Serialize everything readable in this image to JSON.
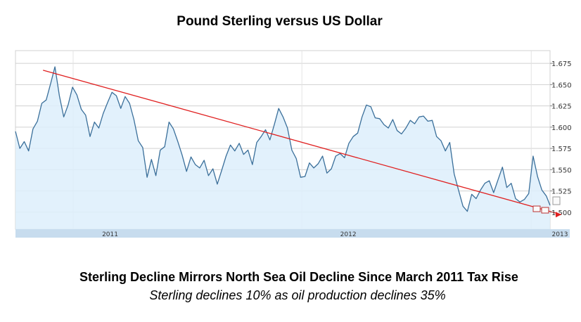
{
  "chart_data": {
    "type": "line",
    "title": "Pound Sterling versus US Dollar",
    "subtitle": "Sterling Decline Mirrors North Sea Oil Decline Since March 2011 Tax Rise",
    "annotation": "Sterling declines 10% as oil production declines 35%",
    "y_ticks": [
      "1.675",
      "1.650",
      "1.625",
      "1.600",
      "1.575",
      "1.550",
      "1.525",
      "1.500"
    ],
    "ylim": [
      1.48,
      1.69
    ],
    "x_labels": [
      "2011",
      "2012",
      "2013"
    ],
    "x_start": "2010-10-01",
    "x_end": "2013-01-31",
    "grid": true,
    "colors": {
      "line": "#3a6f9a",
      "area": "#ddeefb",
      "trend": "#e02020",
      "axis_band": "#c7dcee",
      "grid": "#d0d0d0"
    },
    "series": [
      {
        "x": [
          "2010-10-01",
          "2010-10-08",
          "2010-10-15",
          "2010-10-22",
          "2010-10-29",
          "2010-11-05",
          "2010-11-12",
          "2010-11-19",
          "2010-11-26",
          "2010-12-03",
          "2010-12-10",
          "2010-12-17",
          "2010-12-24",
          "2010-12-31",
          "2011-01-07",
          "2011-01-14",
          "2011-01-21",
          "2011-01-28",
          "2011-02-04",
          "2011-02-11",
          "2011-02-18",
          "2011-02-25",
          "2011-03-04",
          "2011-03-11",
          "2011-03-18",
          "2011-03-25",
          "2011-04-01",
          "2011-04-08",
          "2011-04-15",
          "2011-04-22",
          "2011-04-29",
          "2011-05-06",
          "2011-05-13",
          "2011-05-20",
          "2011-05-27",
          "2011-06-03",
          "2011-06-10",
          "2011-06-17",
          "2011-06-24",
          "2011-07-01",
          "2011-07-08",
          "2011-07-15",
          "2011-07-22",
          "2011-07-29",
          "2011-08-05",
          "2011-08-12",
          "2011-08-19",
          "2011-08-26",
          "2011-09-02",
          "2011-09-09",
          "2011-09-16",
          "2011-09-23",
          "2011-09-30",
          "2011-10-07",
          "2011-10-14",
          "2011-10-21",
          "2011-10-28",
          "2011-11-04",
          "2011-11-11",
          "2011-11-18",
          "2011-11-25",
          "2011-12-02",
          "2011-12-09",
          "2011-12-16",
          "2011-12-23",
          "2011-12-30",
          "2012-01-06",
          "2012-01-13",
          "2012-01-20",
          "2012-01-27",
          "2012-02-03",
          "2012-02-10",
          "2012-02-17",
          "2012-02-24",
          "2012-03-02",
          "2012-03-09",
          "2012-03-16",
          "2012-03-23",
          "2012-03-30",
          "2012-04-06",
          "2012-04-13",
          "2012-04-20",
          "2012-04-27",
          "2012-05-04",
          "2012-05-11",
          "2012-05-18",
          "2012-05-25",
          "2012-06-01",
          "2012-06-08",
          "2012-06-15",
          "2012-06-22",
          "2012-06-29",
          "2012-07-06",
          "2012-07-13",
          "2012-07-20",
          "2012-07-27",
          "2012-08-03",
          "2012-08-10",
          "2012-08-17",
          "2012-08-24",
          "2012-08-31",
          "2012-09-07",
          "2012-09-14",
          "2012-09-21",
          "2012-09-28",
          "2012-10-05",
          "2012-10-12",
          "2012-10-19",
          "2012-10-26",
          "2012-11-02",
          "2012-11-09",
          "2012-11-16",
          "2012-11-23",
          "2012-11-30",
          "2012-12-07",
          "2012-12-14",
          "2012-12-21",
          "2012-12-28",
          "2013-01-04",
          "2013-01-11",
          "2013-01-18",
          "2013-01-25",
          "2013-01-31"
        ],
        "values": [
          1.595,
          1.575,
          1.583,
          1.572,
          1.598,
          1.607,
          1.628,
          1.632,
          1.651,
          1.671,
          1.637,
          1.612,
          1.626,
          1.647,
          1.638,
          1.621,
          1.614,
          1.589,
          1.606,
          1.599,
          1.616,
          1.629,
          1.641,
          1.637,
          1.622,
          1.636,
          1.628,
          1.609,
          1.584,
          1.576,
          1.541,
          1.562,
          1.543,
          1.573,
          1.577,
          1.606,
          1.598,
          1.583,
          1.567,
          1.548,
          1.565,
          1.556,
          1.552,
          1.561,
          1.543,
          1.551,
          1.533,
          1.549,
          1.566,
          1.579,
          1.572,
          1.581,
          1.568,
          1.573,
          1.556,
          1.582,
          1.589,
          1.597,
          1.585,
          1.603,
          1.622,
          1.612,
          1.599,
          1.573,
          1.563,
          1.541,
          1.542,
          1.558,
          1.552,
          1.557,
          1.566,
          1.546,
          1.551,
          1.566,
          1.569,
          1.564,
          1.581,
          1.589,
          1.593,
          1.612,
          1.626,
          1.624,
          1.611,
          1.61,
          1.603,
          1.599,
          1.609,
          1.596,
          1.592,
          1.599,
          1.608,
          1.604,
          1.612,
          1.613,
          1.607,
          1.608,
          1.589,
          1.584,
          1.572,
          1.582,
          1.545,
          1.526,
          1.507,
          1.501,
          1.521,
          1.516,
          1.526,
          1.534,
          1.537,
          1.523,
          1.538,
          1.553,
          1.529,
          1.534,
          1.516,
          1.512,
          1.515,
          1.522,
          1.566,
          1.542,
          1.526,
          1.519,
          1.508
        ]
      }
    ],
    "trend_line": {
      "x": [
        "2010-11-14",
        "2013-01-31"
      ],
      "values": [
        1.667,
        1.498
      ]
    }
  }
}
